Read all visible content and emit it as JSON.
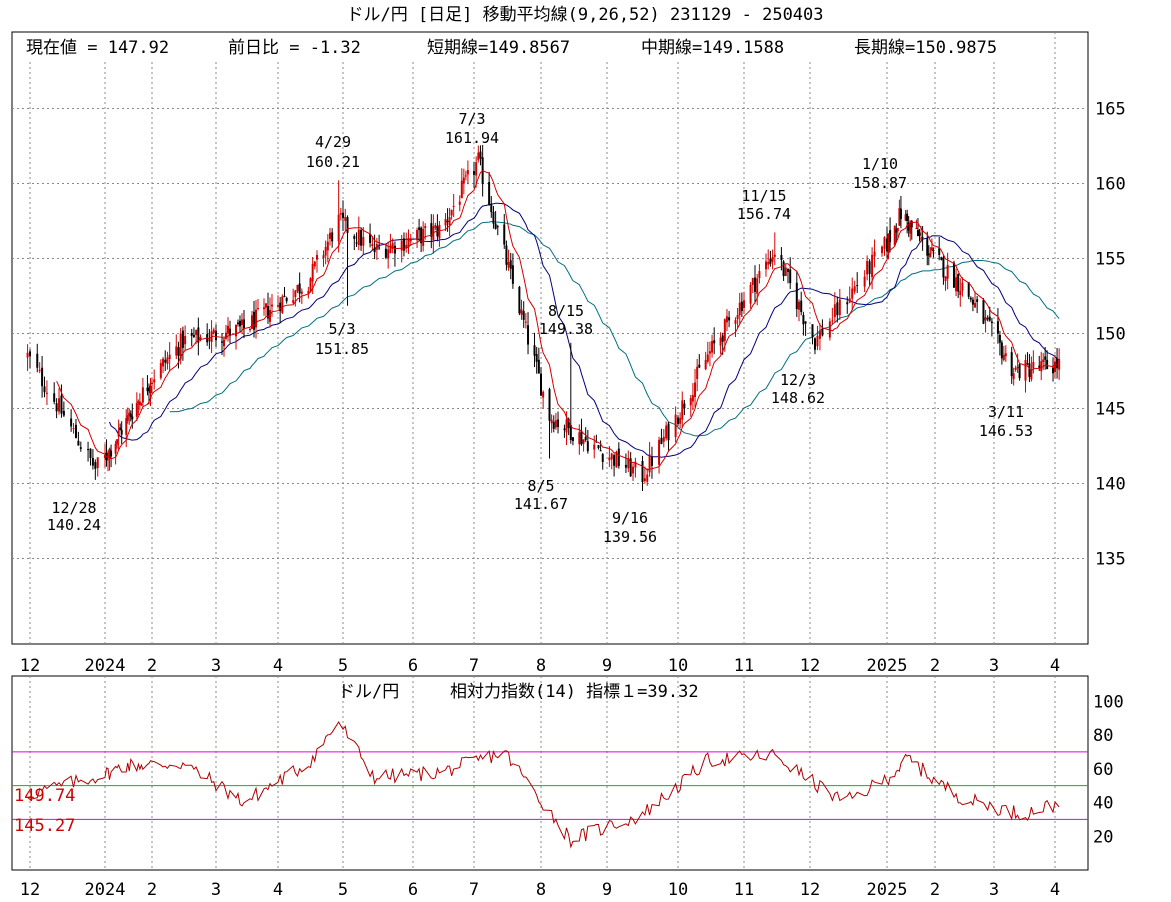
{
  "title": "ドル/円 [日足]  移動平均線(9,26,52)  231129 - 250403",
  "stats": {
    "current": "現在値 = 147.92",
    "change": "前日比 = -1.32",
    "short_ma": "短期線=149.8567",
    "mid_ma": "中期線=149.1588",
    "long_ma": "長期線=150.9875"
  },
  "sub_title": {
    "pair": "ドル/円",
    "indicator": "相対力指数(14) 指標１=39.32"
  },
  "sub_lines": {
    "upper_label": "149.74",
    "lower_label": "145.27"
  },
  "colors": {
    "up": "#d40000",
    "down": "#000000",
    "short_ma": "#d40000",
    "mid_ma": "#000080",
    "long_ma": "#007080",
    "rsi": "#b00000",
    "band_70": "#e000e0",
    "band_50": "#00c000",
    "grid": "#888888"
  },
  "chart_data": [
    {
      "type": "candlestick",
      "title": "ドル/円 [日足]  移動平均線(9,26,52)  231129 - 250403",
      "x_labels": [
        "12",
        "2024",
        "2",
        "3",
        "4",
        "5",
        "6",
        "7",
        "8",
        "9",
        "10",
        "11",
        "12",
        "2025",
        "2",
        "3",
        "4"
      ],
      "y_ticks": [
        135,
        140,
        145,
        150,
        155,
        160,
        165
      ],
      "ylim": [
        129.3,
        170.1
      ],
      "grid": true,
      "moving_averages": [
        {
          "period": 9,
          "color": "#d40000"
        },
        {
          "period": 26,
          "color": "#000080"
        },
        {
          "period": 52,
          "color": "#007080"
        }
      ],
      "annotations": [
        {
          "date": "12/28",
          "value": 140.24,
          "kind": "low"
        },
        {
          "date": "4/29",
          "value": 160.21,
          "kind": "high"
        },
        {
          "date": "5/3",
          "value": 151.85,
          "kind": "low"
        },
        {
          "date": "7/3",
          "value": 161.94,
          "kind": "high"
        },
        {
          "date": "8/5",
          "value": 141.67,
          "kind": "low"
        },
        {
          "date": "8/15",
          "value": 149.38,
          "kind": "high"
        },
        {
          "date": "9/16",
          "value": 139.56,
          "kind": "low"
        },
        {
          "date": "11/15",
          "value": 156.74,
          "kind": "high"
        },
        {
          "date": "12/3",
          "value": 148.62,
          "kind": "low"
        },
        {
          "date": "1/10",
          "value": 158.87,
          "kind": "high"
        },
        {
          "date": "3/11",
          "value": 146.53,
          "kind": "low"
        }
      ],
      "approx_close_path": [
        {
          "month": "2023-12 start",
          "close": 148.5
        },
        {
          "month": "2023-12-28",
          "close": 141.0
        },
        {
          "month": "2024-02",
          "close": 149.5
        },
        {
          "month": "2024-03",
          "close": 150.3
        },
        {
          "month": "2024-04",
          "close": 153.5
        },
        {
          "month": "2024-04-29",
          "close": 157.5
        },
        {
          "month": "2024-05",
          "close": 155.5
        },
        {
          "month": "2024-06",
          "close": 157.0
        },
        {
          "month": "2024-07-03",
          "close": 161.5
        },
        {
          "month": "2024-08-05",
          "close": 144.5
        },
        {
          "month": "2024-09-16",
          "close": 140.5
        },
        {
          "month": "2024-10",
          "close": 148.5
        },
        {
          "month": "2024-11-15",
          "close": 155.5
        },
        {
          "month": "2024-12-03",
          "close": 149.5
        },
        {
          "month": "2025-01-10",
          "close": 158.0
        },
        {
          "month": "2025-02",
          "close": 153.0
        },
        {
          "month": "2025-03-11",
          "close": 147.5
        },
        {
          "month": "2025-04-03",
          "close": 147.92
        }
      ]
    },
    {
      "type": "line",
      "title": "相対力指数(14)",
      "x_labels": [
        "12",
        "2024",
        "2",
        "3",
        "4",
        "5",
        "6",
        "7",
        "8",
        "9",
        "10",
        "11",
        "12",
        "2025",
        "2",
        "3",
        "4"
      ],
      "y_ticks": [
        20,
        40,
        60,
        80,
        100
      ],
      "ylim": [
        0,
        115
      ],
      "reference_lines": [
        70,
        50,
        30
      ],
      "latest_value": 39.32,
      "approx_path": [
        {
          "month": "2023-12",
          "rsi": 45
        },
        {
          "month": "2024-01",
          "rsi": 62
        },
        {
          "month": "2024-02",
          "rsi": 63
        },
        {
          "month": "2024-03",
          "rsi": 40
        },
        {
          "month": "2024-04",
          "rsi": 63
        },
        {
          "month": "2024-04-29",
          "rsi": 88
        },
        {
          "month": "2024-05",
          "rsi": 55
        },
        {
          "month": "2024-06",
          "rsi": 58
        },
        {
          "month": "2024-07",
          "rsi": 70
        },
        {
          "month": "2024-08",
          "rsi": 18
        },
        {
          "month": "2024-09",
          "rsi": 32
        },
        {
          "month": "2024-10",
          "rsi": 65
        },
        {
          "month": "2024-11",
          "rsi": 68
        },
        {
          "month": "2024-12",
          "rsi": 40
        },
        {
          "month": "2025-01",
          "rsi": 66
        },
        {
          "month": "2025-02",
          "rsi": 42
        },
        {
          "month": "2025-03",
          "rsi": 33
        },
        {
          "month": "2025-04",
          "rsi": 39.32
        }
      ]
    }
  ]
}
